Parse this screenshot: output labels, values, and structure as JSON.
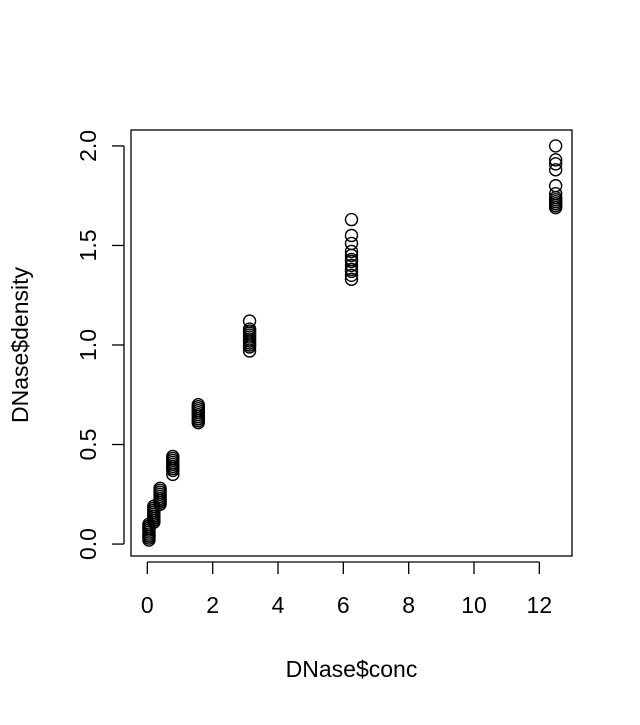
{
  "chart_data": {
    "type": "scatter",
    "title": "",
    "xlabel": "DNase$conc",
    "ylabel": "DNase$density",
    "xlim": [
      -0.5,
      13
    ],
    "ylim": [
      -0.06,
      2.08
    ],
    "x_ticks": [
      0,
      2,
      4,
      6,
      8,
      10,
      12
    ],
    "x_tick_labels": [
      "0",
      "2",
      "4",
      "6",
      "8",
      "10",
      "12"
    ],
    "y_ticks": [
      0,
      0.5,
      1,
      1.5,
      2
    ],
    "y_tick_labels": [
      "0.0",
      "0.5",
      "1.0",
      "1.5",
      "2.0"
    ],
    "grid": false,
    "legend": "none",
    "marker": "open-circle",
    "color": "#000000",
    "series": [
      {
        "x": [
          0.05,
          0.05,
          0.05,
          0.05,
          0.05,
          0.05,
          0.05,
          0.05,
          0.05,
          0.05,
          0.05,
          0.2,
          0.2,
          0.2,
          0.2,
          0.2,
          0.2,
          0.2,
          0.2,
          0.2,
          0.2,
          0.2,
          0.2,
          0.39,
          0.39,
          0.39,
          0.39,
          0.39,
          0.39,
          0.39,
          0.39,
          0.39,
          0.39,
          0.78,
          0.78,
          0.78,
          0.78,
          0.78,
          0.78,
          0.78,
          0.78,
          0.78,
          0.78,
          1.56,
          1.56,
          1.56,
          1.56,
          1.56,
          1.56,
          1.56,
          1.56,
          1.56,
          1.56,
          3.13,
          3.13,
          3.13,
          3.13,
          3.13,
          3.13,
          3.13,
          3.13,
          3.13,
          3.13,
          3.13,
          3.13,
          6.25,
          6.25,
          6.25,
          6.25,
          6.25,
          6.25,
          6.25,
          6.25,
          6.25,
          6.25,
          6.25,
          6.25,
          12.5,
          12.5,
          12.5,
          12.5,
          12.5,
          12.5,
          12.5,
          12.5,
          12.5,
          12.5,
          12.5,
          12.5
        ],
        "y": [
          0.02,
          0.03,
          0.04,
          0.05,
          0.06,
          0.07,
          0.08,
          0.09,
          0.1,
          0.04,
          0.08,
          0.11,
          0.12,
          0.13,
          0.14,
          0.15,
          0.16,
          0.17,
          0.18,
          0.19,
          0.12,
          0.16,
          0.14,
          0.2,
          0.21,
          0.22,
          0.23,
          0.24,
          0.25,
          0.26,
          0.27,
          0.28,
          0.22,
          0.35,
          0.37,
          0.38,
          0.39,
          0.4,
          0.41,
          0.42,
          0.43,
          0.44,
          0.38,
          0.61,
          0.62,
          0.64,
          0.65,
          0.66,
          0.67,
          0.68,
          0.69,
          0.7,
          0.63,
          0.97,
          0.99,
          1.0,
          1.01,
          1.02,
          1.03,
          1.04,
          1.05,
          1.06,
          1.07,
          1.08,
          1.12,
          1.33,
          1.35,
          1.37,
          1.38,
          1.4,
          1.42,
          1.43,
          1.45,
          1.47,
          1.51,
          1.55,
          1.63,
          1.69,
          1.7,
          1.71,
          1.72,
          1.73,
          1.74,
          1.76,
          1.8,
          1.88,
          1.91,
          1.93,
          2.0
        ]
      }
    ]
  }
}
